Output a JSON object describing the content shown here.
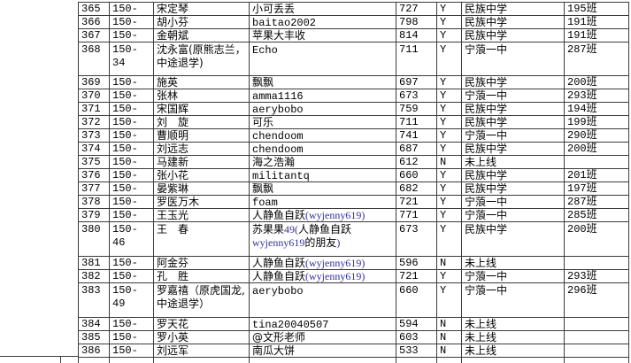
{
  "app": {
    "title": "student roster spreadsheet (region screenshot)"
  },
  "colors": {
    "background": "#ffffff",
    "grid_line": "#3b3b3b",
    "text": "#000000",
    "serif_text": "#333399"
  },
  "table": {
    "columns": [
      "row-number",
      "student-code",
      "name",
      "nickname",
      "score",
      "online-flag",
      "school",
      "class"
    ],
    "rows": [
      {
        "num": "365",
        "code": "150-31",
        "name": "宋定琴",
        "nick": [
          {
            "t": "小可丢丢"
          }
        ],
        "score": "727",
        "online": "Y",
        "school": "民族中学",
        "klass": "195班"
      },
      {
        "num": "366",
        "code": "150-32",
        "name": "胡小芬",
        "nick": [
          {
            "t": "baitao2002",
            "f": "m"
          }
        ],
        "score": "798",
        "online": "Y",
        "school": "民族中学",
        "klass": "191班"
      },
      {
        "num": "367",
        "code": "150-33",
        "name": "金朝斌",
        "nick": [
          {
            "t": "苹果大丰收"
          }
        ],
        "score": "814",
        "online": "Y",
        "school": "民族中学",
        "klass": "191班"
      },
      {
        "num": "368",
        "code": "150-34",
        "name": "沈永富(原熊志兰，中途退学)",
        "nick": [
          {
            "t": "Echo",
            "f": "m"
          }
        ],
        "score": "711",
        "online": "Y",
        "school": "宁蒗一中",
        "klass": "287班",
        "tall": 1
      },
      {
        "num": "369",
        "code": "150-35",
        "name": "施英",
        "nick": [
          {
            "t": "飘飘"
          }
        ],
        "score": "697",
        "online": "Y",
        "school": "民族中学",
        "klass": "200班"
      },
      {
        "num": "370",
        "code": "150-36",
        "name": "张林",
        "nick": [
          {
            "t": "amma1116",
            "f": "m"
          }
        ],
        "score": "673",
        "online": "Y",
        "school": "宁蒗一中",
        "klass": "293班"
      },
      {
        "num": "371",
        "code": "150-37",
        "name": "宋国辉",
        "nick": [
          {
            "t": "aerybobo",
            "f": "m"
          }
        ],
        "score": "759",
        "online": "Y",
        "school": "民族中学",
        "klass": "194班"
      },
      {
        "num": "372",
        "code": "150-38",
        "name": "刘　旋",
        "nick": [
          {
            "t": "可乐"
          }
        ],
        "score": "711",
        "online": "Y",
        "school": "民族中学",
        "klass": "199班"
      },
      {
        "num": "373",
        "code": "150-39",
        "name": "曹顺明",
        "nick": [
          {
            "t": "chendoom",
            "f": "m"
          }
        ],
        "score": "741",
        "online": "Y",
        "school": "宁蒗一中",
        "klass": "290班"
      },
      {
        "num": "374",
        "code": "150-40",
        "name": "刘远志",
        "nick": [
          {
            "t": "chendoom",
            "f": "m"
          }
        ],
        "score": "687",
        "online": "Y",
        "school": "民族中学",
        "klass": "200班"
      },
      {
        "num": "375",
        "code": "150-41",
        "name": "马建新",
        "nick": [
          {
            "t": "海之浩瀚"
          }
        ],
        "score": "612",
        "online": "N",
        "school": "未上线",
        "klass": ""
      },
      {
        "num": "376",
        "code": "150-42",
        "name": "张小花",
        "nick": [
          {
            "t": "militantq",
            "f": "m"
          }
        ],
        "score": "660",
        "online": "Y",
        "school": "民族中学",
        "klass": "201班"
      },
      {
        "num": "377",
        "code": "150-43",
        "name": "晏紫琳",
        "nick": [
          {
            "t": "飘飘"
          }
        ],
        "score": "682",
        "online": "Y",
        "school": "民族中学",
        "klass": "197班"
      },
      {
        "num": "378",
        "code": "150-44",
        "name": "罗医万木",
        "nick": [
          {
            "t": "foam",
            "f": "m"
          }
        ],
        "score": "721",
        "online": "Y",
        "school": "宁蒗一中",
        "klass": "287班"
      },
      {
        "num": "379",
        "code": "150-45",
        "name": "王玉光",
        "nick": [
          {
            "t": "人静鱼自跃"
          },
          {
            "t": "(wyjenny619)",
            "f": "s"
          }
        ],
        "score": "771",
        "online": "Y",
        "school": "宁蒗一中",
        "klass": "285班"
      },
      {
        "num": "380",
        "code": "150-46",
        "name": "王　春",
        "nick": [
          {
            "t": "苏果果"
          },
          {
            "t": "49(",
            "f": "s"
          },
          {
            "t": "人静鱼自跃"
          },
          {
            "t": "wyjenny619",
            "f": "s"
          },
          {
            "t": "的朋友"
          },
          {
            "t": ")",
            "f": "s"
          }
        ],
        "score": "673",
        "online": "Y",
        "school": "民族中学",
        "klass": "200班",
        "tall": 2
      },
      {
        "num": "381",
        "code": "150-47",
        "name": "阿金芬",
        "nick": [
          {
            "t": "人静鱼自跃"
          },
          {
            "t": "(wyjenny619)",
            "f": "s"
          }
        ],
        "score": "596",
        "online": "N",
        "school": "未上线",
        "klass": ""
      },
      {
        "num": "382",
        "code": "150-48",
        "name": "孔　胜",
        "nick": [
          {
            "t": "人静鱼自跃"
          },
          {
            "t": "(wyjenny619)",
            "f": "s"
          }
        ],
        "score": "721",
        "online": "Y",
        "school": "宁蒗一中",
        "klass": "293班"
      },
      {
        "num": "383",
        "code": "150-49",
        "name": "罗嘉禧（原虎国龙,中途退学）",
        "nick": [
          {
            "t": "aerybobo",
            "f": "m"
          }
        ],
        "score": "660",
        "online": "Y",
        "school": "宁蒗一中",
        "klass": "296班",
        "tall": 2
      },
      {
        "num": "384",
        "code": "150-50",
        "name": "罗天花",
        "nick": [
          {
            "t": "tina20040507",
            "f": "m"
          }
        ],
        "score": "594",
        "online": "N",
        "school": "未上线",
        "klass": ""
      },
      {
        "num": "385",
        "code": "150-51",
        "name": "罗小英",
        "nick": [
          {
            "t": "@文形老师"
          }
        ],
        "score": "603",
        "online": "N",
        "school": "未上线",
        "klass": ""
      },
      {
        "num": "386",
        "code": "150-52",
        "name": "刘远军",
        "nick": [
          {
            "t": "南瓜大饼"
          }
        ],
        "score": "533",
        "online": "N",
        "school": "未上线",
        "klass": ""
      }
    ]
  }
}
